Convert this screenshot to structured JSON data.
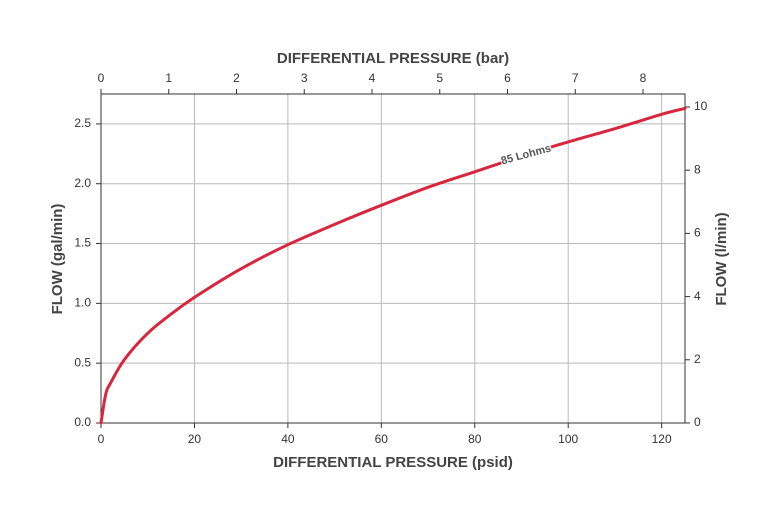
{
  "chart_data": {
    "type": "line",
    "title": "",
    "xlabel": "DIFFERENTIAL PRESSURE (psid)",
    "ylabel": "FLOW (gal/min)",
    "x2label": "DIFFERENTIAL PRESSURE (bar)",
    "y2label": "FLOW (l/min)",
    "xlim": [
      0,
      125
    ],
    "ylim": [
      0,
      2.75
    ],
    "x2lim": [
      0,
      8.62
    ],
    "y2lim": [
      0,
      10.41
    ],
    "xticks": [
      0,
      20,
      40,
      60,
      80,
      100,
      120
    ],
    "yticks": [
      0.0,
      0.5,
      1.0,
      1.5,
      2.0,
      2.5
    ],
    "x2ticks": [
      0,
      1,
      2,
      3,
      4,
      5,
      6,
      7,
      8
    ],
    "y2ticks": [
      0,
      2,
      4,
      6,
      8,
      10
    ],
    "xtick_labels": [
      "0",
      "20",
      "40",
      "60",
      "80",
      "100",
      "120"
    ],
    "ytick_labels": [
      "0.0",
      "0.5",
      "1.0",
      "1.5",
      "2.0",
      "2.5"
    ],
    "x2tick_labels": [
      "0",
      "1",
      "2",
      "3",
      "4",
      "5",
      "6",
      "7",
      "8"
    ],
    "y2tick_labels": [
      "0",
      "2",
      "4",
      "6",
      "8",
      "10"
    ],
    "grid": true,
    "series": [
      {
        "name": "85 Lohms",
        "color": "#d7263d",
        "x": [
          0,
          1,
          2,
          5,
          10,
          15,
          20,
          30,
          40,
          50,
          60,
          70,
          80,
          90,
          100,
          110,
          120,
          125
        ],
        "y": [
          0,
          0.24,
          0.33,
          0.53,
          0.75,
          0.91,
          1.05,
          1.29,
          1.49,
          1.66,
          1.82,
          1.97,
          2.1,
          2.23,
          2.35,
          2.46,
          2.58,
          2.63
        ]
      }
    ]
  }
}
